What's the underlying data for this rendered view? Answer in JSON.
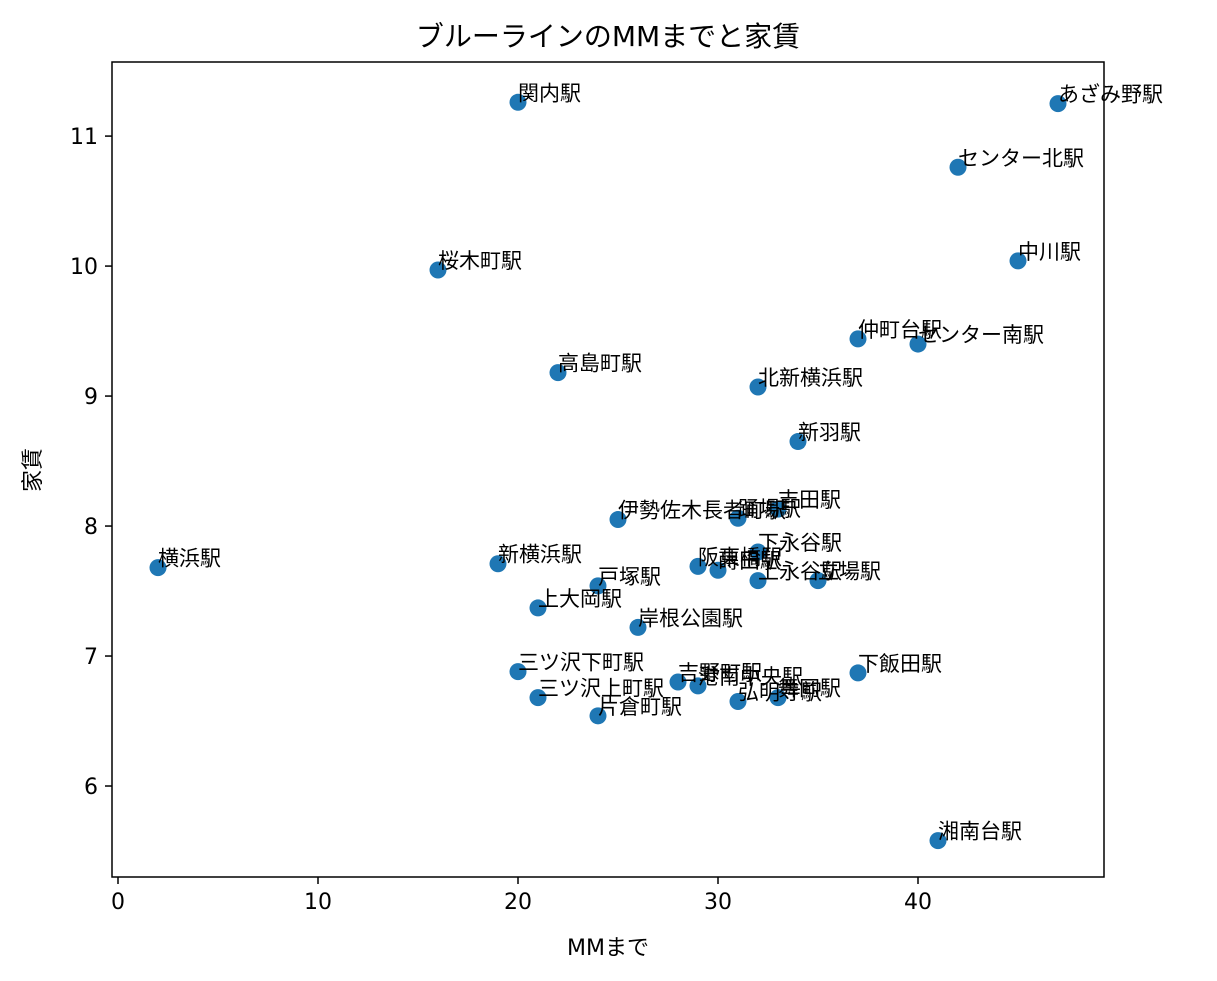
{
  "chart_data": {
    "type": "scatter",
    "title": "ブルーラインのMMまでと家賃",
    "xlabel": "MMまで",
    "ylabel": "家賃",
    "xlim": [
      -0.3,
      49.3
    ],
    "ylim": [
      5.3,
      11.57
    ],
    "xticks": [
      0,
      10,
      20,
      30,
      40
    ],
    "yticks": [
      6,
      7,
      8,
      9,
      10,
      11
    ],
    "grid": false,
    "points": [
      {
        "label": "関内駅",
        "x": 20,
        "y": 11.26
      },
      {
        "label": "あざみ野駅",
        "x": 47,
        "y": 11.25
      },
      {
        "label": "センター北駅",
        "x": 42,
        "y": 10.76
      },
      {
        "label": "中川駅",
        "x": 45,
        "y": 10.04
      },
      {
        "label": "桜木町駅",
        "x": 16,
        "y": 9.97
      },
      {
        "label": "仲町台駅",
        "x": 37,
        "y": 9.44
      },
      {
        "label": "センター南駅",
        "x": 40,
        "y": 9.4
      },
      {
        "label": "高島町駅",
        "x": 22,
        "y": 9.18
      },
      {
        "label": "北新横浜駅",
        "x": 32,
        "y": 9.07
      },
      {
        "label": "新羽駅",
        "x": 34,
        "y": 8.65
      },
      {
        "label": "吉田駅",
        "x": 33,
        "y": 8.13
      },
      {
        "label": "伊勢佐木長者町駅",
        "x": 25,
        "y": 8.05
      },
      {
        "label": "踊場駅",
        "x": 31,
        "y": 8.06
      },
      {
        "label": "下永谷駅",
        "x": 32,
        "y": 7.8
      },
      {
        "label": "横浜駅",
        "x": 2,
        "y": 7.68
      },
      {
        "label": "新横浜駅",
        "x": 19,
        "y": 7.71
      },
      {
        "label": "阪東橋駅",
        "x": 29,
        "y": 7.69
      },
      {
        "label": "蒔田駅",
        "x": 30,
        "y": 7.66
      },
      {
        "label": "上永谷駅",
        "x": 32,
        "y": 7.58
      },
      {
        "label": "立場駅",
        "x": 35,
        "y": 7.58
      },
      {
        "label": "戸塚駅",
        "x": 24,
        "y": 7.54
      },
      {
        "label": "上大岡駅",
        "x": 21,
        "y": 7.37
      },
      {
        "label": "岸根公園駅",
        "x": 26,
        "y": 7.22
      },
      {
        "label": "三ツ沢下町駅",
        "x": 20,
        "y": 6.88
      },
      {
        "label": "下飯田駅",
        "x": 37,
        "y": 6.87
      },
      {
        "label": "吉野町駅",
        "x": 28,
        "y": 6.8
      },
      {
        "label": "港南中央駅",
        "x": 29,
        "y": 6.77
      },
      {
        "label": "三ツ沢上町駅",
        "x": 21,
        "y": 6.68
      },
      {
        "label": "弘明寺駅",
        "x": 31,
        "y": 6.65
      },
      {
        "label": "舞岡駅",
        "x": 33,
        "y": 6.68
      },
      {
        "label": "片倉町駅",
        "x": 24,
        "y": 6.54
      },
      {
        "label": "湘南台駅",
        "x": 41,
        "y": 5.58
      }
    ]
  }
}
